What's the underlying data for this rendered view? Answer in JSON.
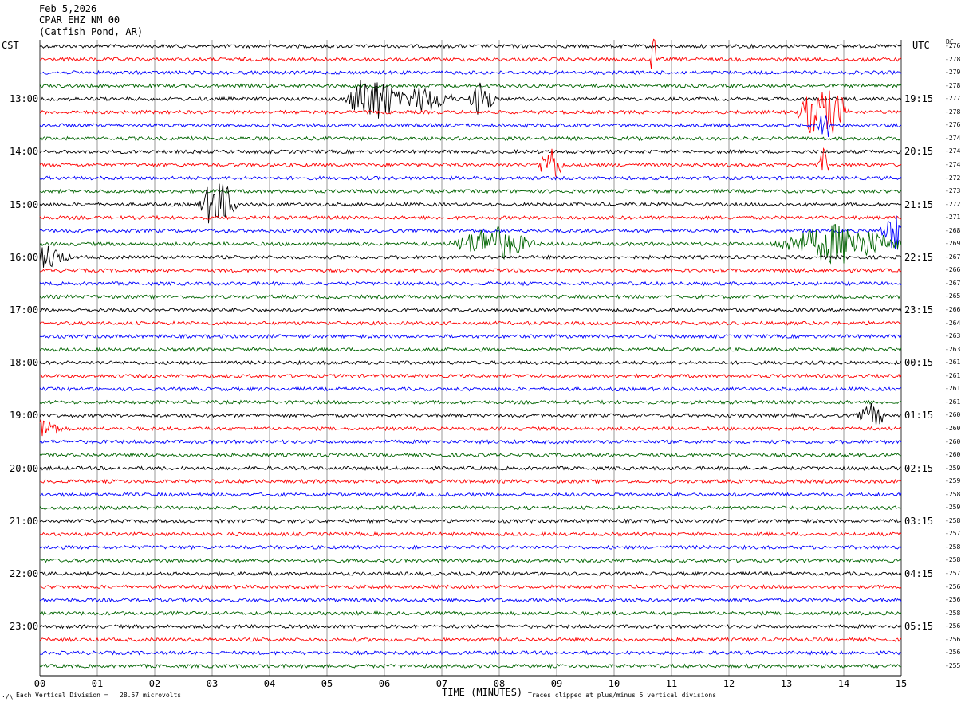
{
  "header": {
    "date": "Feb 5,2026",
    "station": "CPAR EHZ NM 00",
    "location": "(Catfish Pond, AR)"
  },
  "left_tz": "CST",
  "right_tz": "UTC",
  "dc_label": "DC",
  "footer": {
    "scale_note": "Each Vertical Division =   28.57 microvolts",
    "xlabel": "TIME (MINUTES)",
    "clip_note": "Traces clipped at plus/minus 5 vertical divisions",
    "corner_mark": "·/\\"
  },
  "colors": {
    "trace_cycle": [
      "#000000",
      "#ff0000",
      "#0000ff",
      "#006400"
    ],
    "grid": "#808080"
  },
  "chart_data": {
    "type": "line",
    "title": "CPAR EHZ NM 00",
    "xlabel": "TIME (MINUTES)",
    "xlim": [
      0,
      15
    ],
    "x_ticks": [
      "00",
      "01",
      "02",
      "03",
      "04",
      "05",
      "06",
      "07",
      "08",
      "09",
      "10",
      "11",
      "12",
      "13",
      "14",
      "15"
    ],
    "left_time_labels": [
      "13:00",
      "14:00",
      "15:00",
      "16:00",
      "17:00",
      "18:00",
      "19:00",
      "20:00",
      "21:00",
      "22:00",
      "23:00"
    ],
    "right_time_labels": [
      "19:15",
      "20:15",
      "21:15",
      "22:15",
      "23:15",
      "00:15",
      "01:15",
      "02:15",
      "03:15",
      "04:15",
      "05:15"
    ],
    "trace_count": 48,
    "dc_offsets": [
      -276,
      -278,
      -279,
      -278,
      -277,
      -278,
      -276,
      -274,
      -274,
      -274,
      -272,
      -273,
      -272,
      -271,
      -268,
      -269,
      -267,
      -266,
      -267,
      -265,
      -266,
      -264,
      -263,
      -263,
      -261,
      -261,
      -261,
      -261,
      -260,
      -260,
      -260,
      -260,
      -259,
      -259,
      -258,
      -259,
      -258,
      -257,
      -258,
      -258,
      -257,
      -256,
      -256,
      -258,
      -256,
      -256,
      -256,
      -255
    ],
    "events": [
      {
        "trace": 1,
        "minute": 10.68,
        "amp": 3.5,
        "dur": 0.05
      },
      {
        "trace": 4,
        "minute": 5.8,
        "amp": 2.6,
        "dur": 0.5
      },
      {
        "trace": 4,
        "minute": 6.7,
        "amp": 1.0,
        "dur": 0.6
      },
      {
        "trace": 4,
        "minute": 7.7,
        "amp": 1.5,
        "dur": 0.25
      },
      {
        "trace": 5,
        "minute": 13.65,
        "amp": 2.8,
        "dur": 0.5
      },
      {
        "trace": 6,
        "minute": 13.65,
        "amp": 2.2,
        "dur": 0.12
      },
      {
        "trace": 9,
        "minute": 8.9,
        "amp": 1.6,
        "dur": 0.25
      },
      {
        "trace": 9,
        "minute": 13.65,
        "amp": 1.2,
        "dur": 0.1
      },
      {
        "trace": 12,
        "minute": 3.1,
        "amp": 2.5,
        "dur": 0.35
      },
      {
        "trace": 15,
        "minute": 7.9,
        "amp": 1.4,
        "dur": 0.8
      },
      {
        "trace": 15,
        "minute": 13.9,
        "amp": 1.6,
        "dur": 1.2
      },
      {
        "trace": 14,
        "minute": 14.9,
        "amp": 1.6,
        "dur": 0.3
      },
      {
        "trace": 16,
        "minute": 0.15,
        "amp": 0.9,
        "dur": 0.4
      },
      {
        "trace": 28,
        "minute": 14.5,
        "amp": 0.9,
        "dur": 0.3
      },
      {
        "trace": 29,
        "minute": 0.1,
        "amp": 0.9,
        "dur": 0.3
      }
    ]
  }
}
